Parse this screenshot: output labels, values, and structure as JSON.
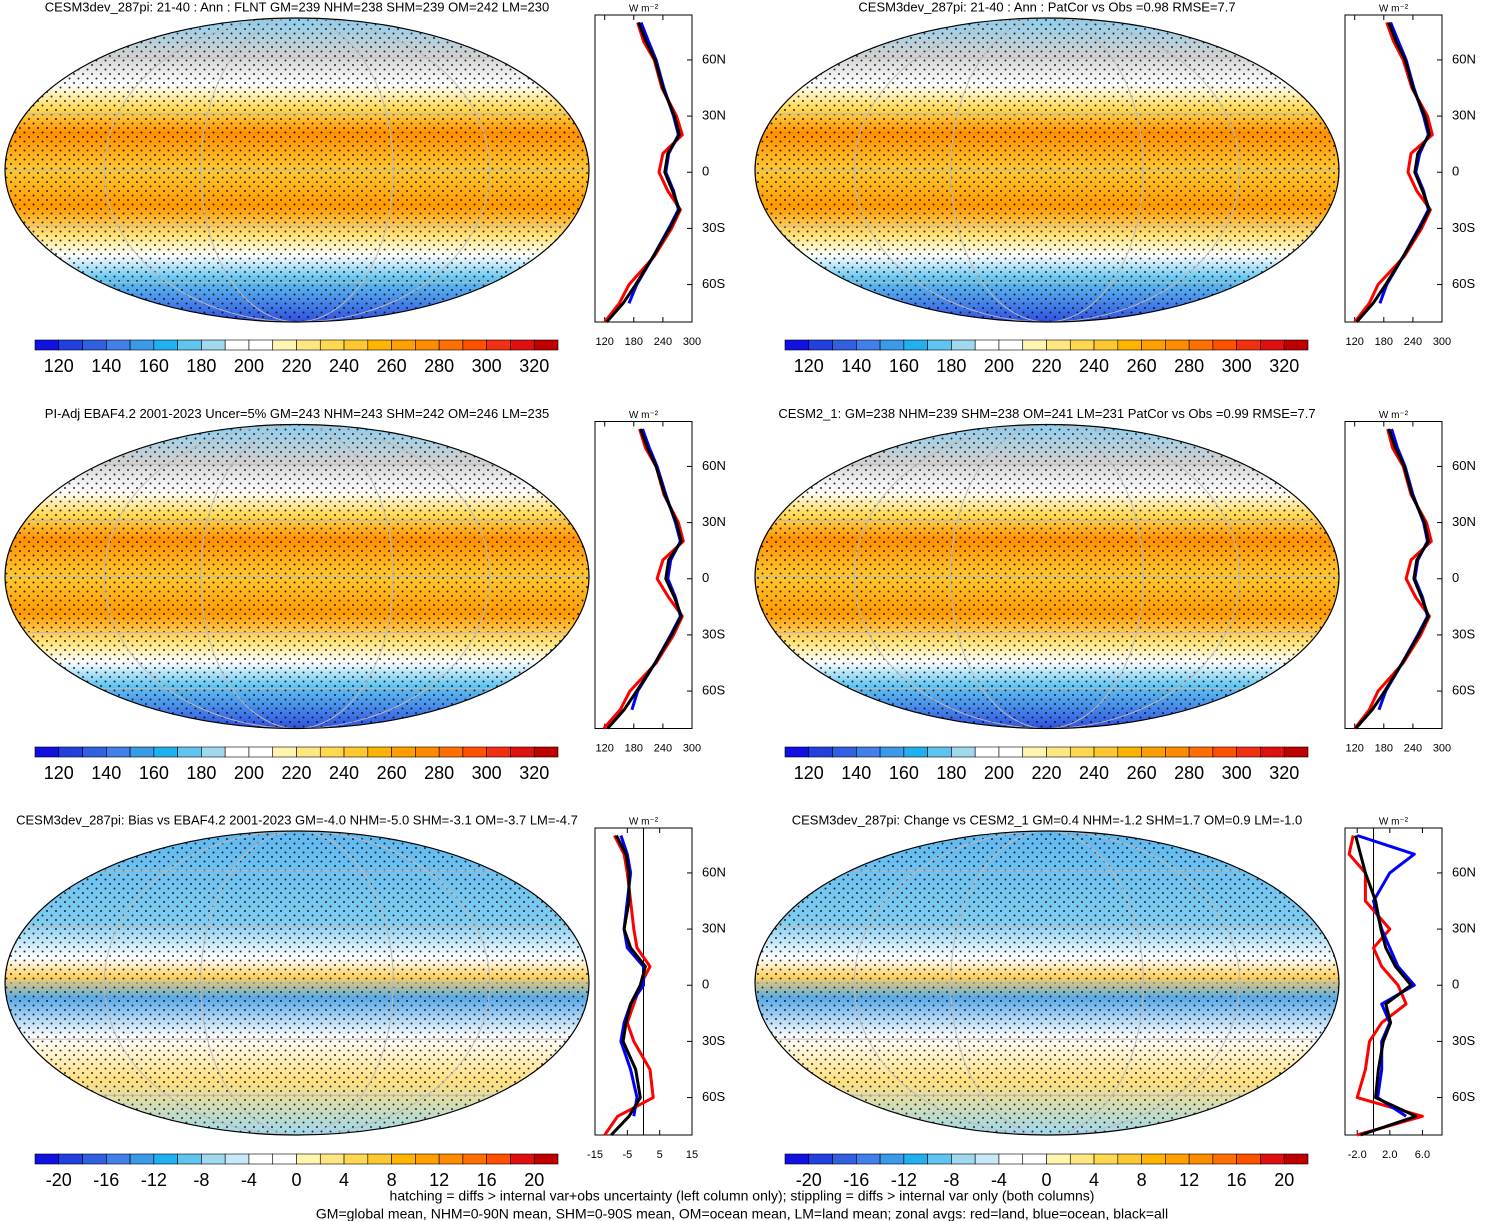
{
  "chart_data": [
    {
      "type": "line",
      "title": "CESM3dev_287pi: 21-40 : Ann : FLNT GM=239 NHM=238 SHM=239 OM=242 LM=230",
      "unit": "W m⁻²",
      "y": [
        80,
        70,
        60,
        45,
        30,
        20,
        10,
        0,
        -10,
        -20,
        -30,
        -45,
        -60,
        -70,
        -80
      ],
      "series": [
        {
          "color": "#ff0000",
          "values": [
            188,
            200,
            222,
            238,
            268,
            280,
            240,
            232,
            250,
            276,
            258,
            222,
            170,
            150,
            120
          ]
        },
        {
          "color": "#0000ff",
          "values": [
            195,
            210,
            226,
            242,
            262,
            272,
            252,
            246,
            262,
            272,
            252,
            220,
            186,
            170,
            null
          ]
        },
        {
          "color": "#000000",
          "values": [
            190,
            205,
            224,
            240,
            264,
            274,
            250,
            244,
            260,
            274,
            254,
            220,
            184,
            158,
            124
          ]
        }
      ],
      "xlim": [
        100,
        300
      ],
      "xticks": [
        120,
        180,
        240,
        300
      ],
      "ylim": [
        -80,
        84
      ],
      "yticks": [
        {
          "value": 60,
          "label": "60N"
        },
        {
          "value": 30,
          "label": "30N"
        },
        0,
        {
          "value": -30,
          "label": "30S"
        },
        {
          "value": -60,
          "label": "60S"
        }
      ],
      "cbar_lim": [
        110,
        330
      ],
      "cbar_ticks": [
        120,
        140,
        160,
        180,
        200,
        220,
        240,
        260,
        280,
        300,
        320
      ],
      "cbar_colors": [
        "#1010e0",
        "#2040e0",
        "#3060e0",
        "#4080e8",
        "#3a9ae8",
        "#20b0f0",
        "#60c4f0",
        "#a0d8f0",
        "#ffffff",
        "#ffffff",
        "#fff5b0",
        "#ffe680",
        "#ffd850",
        "#ffc830",
        "#ffb400",
        "#ffa000",
        "#ff8c00",
        "#ff7000",
        "#ff5000",
        "#f03010",
        "#e01010",
        "#c00000"
      ]
    },
    {
      "type": "line",
      "title": "CESM3dev_287pi: 21-40 : Ann : PatCor vs Obs =0.98 RMSE=7.7",
      "unit": "W m⁻²",
      "y": [
        80,
        70,
        60,
        45,
        30,
        20,
        10,
        0,
        -10,
        -20,
        -30,
        -45,
        -60,
        -70,
        -80
      ],
      "series": [
        {
          "color": "#ff0000",
          "values": [
            186,
            200,
            220,
            238,
            270,
            280,
            236,
            230,
            248,
            276,
            258,
            222,
            168,
            150,
            120
          ]
        },
        {
          "color": "#0000ff",
          "values": [
            194,
            210,
            226,
            242,
            262,
            272,
            254,
            246,
            262,
            272,
            252,
            220,
            186,
            172,
            null
          ]
        },
        {
          "color": "#000000",
          "values": [
            190,
            205,
            224,
            240,
            265,
            274,
            250,
            244,
            260,
            274,
            254,
            220,
            184,
            158,
            124
          ]
        }
      ],
      "xlim": [
        100,
        300
      ],
      "xticks": [
        120,
        180,
        240,
        300
      ],
      "ylim": [
        -80,
        84
      ],
      "yticks": [
        {
          "value": 60,
          "label": "60N"
        },
        {
          "value": 30,
          "label": "30N"
        },
        0,
        {
          "value": -30,
          "label": "30S"
        },
        {
          "value": -60,
          "label": "60S"
        }
      ],
      "cbar_lim": [
        110,
        330
      ],
      "cbar_ticks": [
        120,
        140,
        160,
        180,
        200,
        220,
        240,
        260,
        280,
        300,
        320
      ],
      "cbar_colors": [
        "#1010e0",
        "#2040e0",
        "#3060e0",
        "#4080e8",
        "#3a9ae8",
        "#20b0f0",
        "#60c4f0",
        "#a0d8f0",
        "#ffffff",
        "#ffffff",
        "#fff5b0",
        "#ffe680",
        "#ffd850",
        "#ffc830",
        "#ffb400",
        "#ffa000",
        "#ff8c00",
        "#ff7000",
        "#ff5000",
        "#f03010",
        "#e01010",
        "#c00000"
      ]
    },
    {
      "type": "line",
      "title": "PI-Adj EBAF4.2 2001-2023 Uncer=5% GM=243 NHM=243 SHM=242 OM=246 LM=235",
      "unit": "W m⁻²",
      "y": [
        80,
        70,
        60,
        45,
        30,
        20,
        10,
        0,
        -10,
        -20,
        -30,
        -45,
        -60,
        -70,
        -80
      ],
      "series": [
        {
          "color": "#ff0000",
          "values": [
            192,
            204,
            226,
            242,
            272,
            282,
            240,
            228,
            252,
            280,
            262,
            226,
            172,
            152,
            118
          ]
        },
        {
          "color": "#0000ff",
          "values": [
            198,
            212,
            228,
            246,
            266,
            276,
            256,
            250,
            266,
            276,
            256,
            224,
            188,
            176,
            null
          ]
        },
        {
          "color": "#000000",
          "values": [
            194,
            208,
            226,
            244,
            268,
            278,
            252,
            246,
            264,
            278,
            258,
            224,
            186,
            160,
            126
          ]
        }
      ],
      "xlim": [
        100,
        300
      ],
      "xticks": [
        120,
        180,
        240,
        300
      ],
      "ylim": [
        -80,
        84
      ],
      "yticks": [
        {
          "value": 60,
          "label": "60N"
        },
        {
          "value": 30,
          "label": "30N"
        },
        0,
        {
          "value": -30,
          "label": "30S"
        },
        {
          "value": -60,
          "label": "60S"
        }
      ],
      "cbar_lim": [
        110,
        330
      ],
      "cbar_ticks": [
        120,
        140,
        160,
        180,
        200,
        220,
        240,
        260,
        280,
        300,
        320
      ],
      "cbar_colors": [
        "#1010e0",
        "#2040e0",
        "#3060e0",
        "#4080e8",
        "#3a9ae8",
        "#20b0f0",
        "#60c4f0",
        "#a0d8f0",
        "#ffffff",
        "#ffffff",
        "#fff5b0",
        "#ffe680",
        "#ffd850",
        "#ffc830",
        "#ffb400",
        "#ffa000",
        "#ff8c00",
        "#ff7000",
        "#ff5000",
        "#f03010",
        "#e01010",
        "#c00000"
      ]
    },
    {
      "type": "line",
      "title": "CESM2_1: GM=238 NHM=239 SHM=238 OM=241 LM=231 PatCor vs Obs =0.99 RMSE=7.7",
      "unit": "W m⁻²",
      "y": [
        80,
        70,
        60,
        45,
        30,
        20,
        10,
        0,
        -10,
        -20,
        -30,
        -45,
        -60,
        -70,
        -80
      ],
      "series": [
        {
          "color": "#ff0000",
          "values": [
            188,
            198,
            220,
            236,
            268,
            278,
            236,
            226,
            246,
            274,
            256,
            220,
            168,
            150,
            120
          ]
        },
        {
          "color": "#0000ff",
          "values": [
            196,
            208,
            224,
            240,
            262,
            270,
            250,
            244,
            260,
            270,
            250,
            218,
            184,
            170,
            null
          ]
        },
        {
          "color": "#000000",
          "values": [
            190,
            204,
            222,
            238,
            264,
            272,
            248,
            242,
            258,
            272,
            252,
            218,
            182,
            156,
            122
          ]
        }
      ],
      "xlim": [
        100,
        300
      ],
      "xticks": [
        120,
        180,
        240,
        300
      ],
      "ylim": [
        -80,
        84
      ],
      "yticks": [
        {
          "value": 60,
          "label": "60N"
        },
        {
          "value": 30,
          "label": "30N"
        },
        0,
        {
          "value": -30,
          "label": "30S"
        },
        {
          "value": -60,
          "label": "60S"
        }
      ],
      "cbar_lim": [
        110,
        330
      ],
      "cbar_ticks": [
        120,
        140,
        160,
        180,
        200,
        220,
        240,
        260,
        280,
        300,
        320
      ],
      "cbar_colors": [
        "#1010e0",
        "#2040e0",
        "#3060e0",
        "#4080e8",
        "#3a9ae8",
        "#20b0f0",
        "#60c4f0",
        "#a0d8f0",
        "#ffffff",
        "#ffffff",
        "#fff5b0",
        "#ffe680",
        "#ffd850",
        "#ffc830",
        "#ffb400",
        "#ffa000",
        "#ff8c00",
        "#ff7000",
        "#ff5000",
        "#f03010",
        "#e01010",
        "#c00000"
      ]
    },
    {
      "type": "line",
      "title": "CESM3dev_287pi: Bias vs EBAF4.2 2001-2023 GM=-4.0 NHM=-5.0 SHM=-3.1 OM=-3.7 LM=-4.7",
      "unit": "W m⁻²",
      "y": [
        80,
        70,
        60,
        45,
        30,
        20,
        10,
        0,
        -10,
        -20,
        -30,
        -45,
        -60,
        -70,
        -80
      ],
      "series": [
        {
          "color": "#ff0000",
          "values": [
            -9,
            -6,
            -5,
            -4,
            -3,
            -2,
            2,
            -1,
            -3,
            -5,
            -3,
            2,
            3,
            -8,
            -12
          ]
        },
        {
          "color": "#0000ff",
          "values": [
            -7,
            -5,
            -4,
            -5,
            -6,
            -5,
            0,
            0,
            -4,
            -6,
            -7,
            -4,
            -2,
            -3,
            null
          ]
        },
        {
          "color": "#000000",
          "values": [
            -8.4,
            -5.4,
            -4.5,
            -4.5,
            -6,
            -4,
            0.6,
            -1,
            -4,
            -5.4,
            -6.3,
            -2.4,
            -1,
            -4.5,
            -10
          ]
        }
      ],
      "xlim": [
        -15,
        15
      ],
      "xticks": [
        -15,
        -5,
        5,
        15
      ],
      "ylim": [
        -80,
        84
      ],
      "yticks": [
        {
          "value": 60,
          "label": "60N"
        },
        {
          "value": 30,
          "label": "30N"
        },
        0,
        {
          "value": -30,
          "label": "30S"
        },
        {
          "value": -60,
          "label": "60S"
        }
      ],
      "cbar_lim": [
        -22,
        22
      ],
      "cbar_ticks": [
        -20,
        -16,
        -12,
        -8,
        -4,
        0,
        4,
        8,
        12,
        16,
        20
      ],
      "cbar_colors": [
        "#1010e0",
        "#2040e0",
        "#3060e0",
        "#4080e8",
        "#3a9ae8",
        "#20b0f0",
        "#60c4f0",
        "#a0d8f0",
        "#c8e8f8",
        "#ffffff",
        "#ffffff",
        "#fff5b0",
        "#ffe680",
        "#ffd850",
        "#ffc830",
        "#ffb400",
        "#ffa000",
        "#ff8c00",
        "#ff7000",
        "#ff5000",
        "#e01010",
        "#c00000"
      ]
    },
    {
      "type": "line",
      "title": "CESM3dev_287pi: Change vs CESM2_1 GM=0.4 NHM=-1.2 SHM=1.7 OM=0.9 LM=-1.0",
      "unit": "W m⁻²",
      "y": [
        80,
        70,
        60,
        45,
        30,
        20,
        10,
        0,
        -10,
        -20,
        -30,
        -45,
        -60,
        -70,
        -80
      ],
      "series": [
        {
          "color": "#ff0000",
          "values": [
            -2.5,
            -3,
            -1,
            -1,
            2,
            0,
            1,
            3,
            4,
            1,
            -0.5,
            -1,
            -2,
            6,
            -2
          ]
        },
        {
          "color": "#0000ff",
          "values": [
            -2,
            5,
            2,
            0,
            1,
            2,
            3,
            5,
            1,
            2,
            1,
            1,
            0.5,
            4,
            null
          ]
        },
        {
          "color": "#000000",
          "values": [
            -2.2,
            -1.6,
            -1,
            0.25,
            0.9,
            1.5,
            2.7,
            4.6,
            1.5,
            2.1,
            1.2,
            0.6,
            0.25,
            5.2,
            -1.6
          ]
        }
      ],
      "xlim": [
        -3.5,
        8.4
      ],
      "xticks": [
        {
          "value": -2,
          "label": "-2.0"
        },
        {
          "value": 2,
          "label": "2.0"
        },
        {
          "value": 6,
          "label": "6.0"
        }
      ],
      "ylim": [
        -80,
        84
      ],
      "yticks": [
        {
          "value": 60,
          "label": "60N"
        },
        {
          "value": 30,
          "label": "30N"
        },
        0,
        {
          "value": -30,
          "label": "30S"
        },
        {
          "value": -60,
          "label": "60S"
        }
      ],
      "cbar_lim": [
        -22,
        22
      ],
      "cbar_ticks": [
        -20,
        -16,
        -12,
        -8,
        -4,
        0,
        4,
        8,
        12,
        16,
        20
      ],
      "cbar_colors": [
        "#1010e0",
        "#2040e0",
        "#3060e0",
        "#4080e8",
        "#3a9ae8",
        "#20b0f0",
        "#60c4f0",
        "#a0d8f0",
        "#c8e8f8",
        "#ffffff",
        "#ffffff",
        "#fff5b0",
        "#ffe680",
        "#ffd850",
        "#ffc830",
        "#ffb400",
        "#ffa000",
        "#ff8c00",
        "#ff7000",
        "#ff5000",
        "#e01010",
        "#c00000"
      ]
    }
  ],
  "footer": [
    "hatching = diffs > internal var+obs uncertainty (left column only); stippling = diffs > internal var only (both columns)",
    "GM=global mean, NHM=0-90N mean, SHM=0-90S mean, OM=ocean mean, LM=land mean; zonal avgs: red=land, blue=ocean, black=all"
  ]
}
